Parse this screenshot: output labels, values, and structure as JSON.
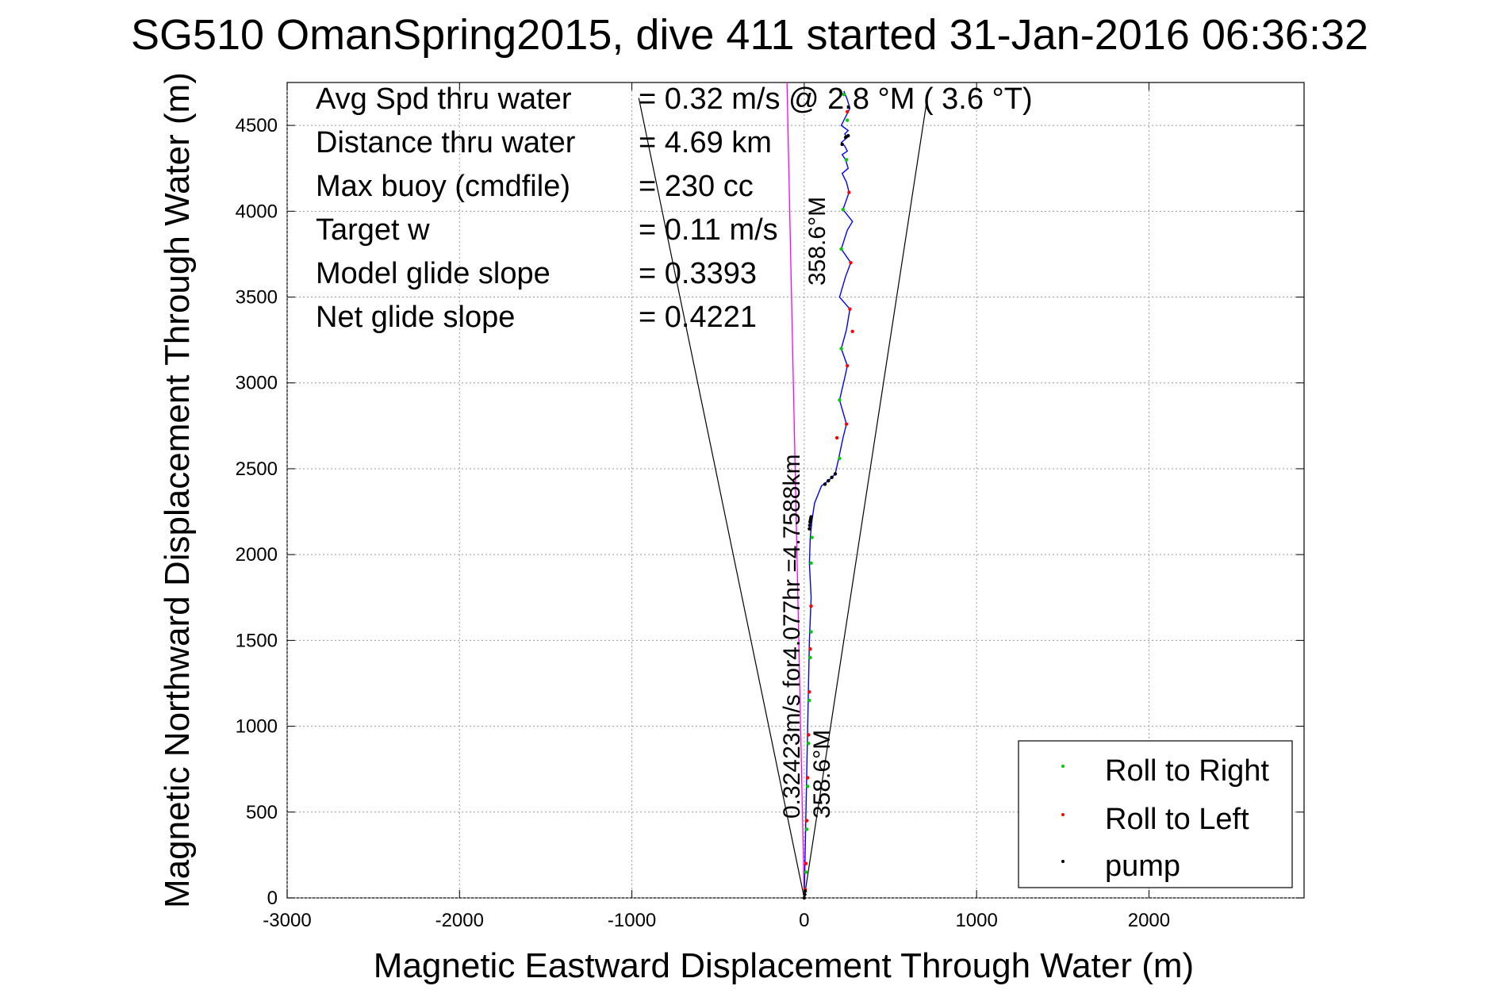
{
  "chart_data": {
    "type": "line",
    "title": "SG510 OmanSpring2015, dive 411 started 31-Jan-2016 06:36:32",
    "xlabel": "Magnetic Eastward Displacement Through Water (m)",
    "ylabel": "Magnetic Northward Displacement Through Water (m)",
    "xlim": [
      -3000,
      2900
    ],
    "ylim": [
      0,
      4750
    ],
    "xticks": [
      -3000,
      -2000,
      -1000,
      0,
      1000,
      2000
    ],
    "xtick_labels": [
      "-3000",
      "-2000",
      "-1000",
      "0",
      "1000",
      "2000"
    ],
    "yticks": [
      0,
      500,
      1000,
      1500,
      2000,
      2500,
      3000,
      3500,
      4000,
      4500
    ],
    "ytick_labels": [
      "0",
      "500",
      "1000",
      "1500",
      "2000",
      "2500",
      "3000",
      "3500",
      "4000",
      "4500"
    ],
    "grid": true,
    "legend_position": "bottom-right",
    "colors": {
      "track": "#0000ff",
      "magenta_line": "#ff00ff",
      "roll_right": "#00cc00",
      "roll_left": "#ff0000",
      "pump": "#000000",
      "cone_lines": "#000000"
    },
    "info_lines": [
      {
        "label": "Avg Spd thru water",
        "value": "=  0.32 m/s @   2.8 °M (  3.6 °T)"
      },
      {
        "label": "Distance thru water",
        "value": "=  4.69 km"
      },
      {
        "label": "Max buoy (cmdfile)",
        "value": "= 230 cc"
      },
      {
        "label": "Target w",
        "value": "= 0.11 m/s"
      },
      {
        "label": "Model glide slope",
        "value": "= 0.3393"
      },
      {
        "label": "Net glide slope",
        "value": "= 0.4221"
      }
    ],
    "annotations": {
      "speed_text": "0.32423m/s for4.077hr =4.7588km",
      "heading_text": "358.6°M",
      "heading_text_top": "358.6°M"
    },
    "cone_lines": [
      {
        "x": [
          0,
          -960
        ],
        "y": [
          0,
          4660
        ]
      },
      {
        "x": [
          0,
          720
        ],
        "y": [
          0,
          4700
        ]
      }
    ],
    "magenta_line": {
      "x": [
        0,
        -100
      ],
      "y": [
        0,
        4750
      ]
    },
    "series": [
      {
        "name": "track",
        "x": [
          0,
          5,
          10,
          15,
          20,
          25,
          30,
          40,
          30,
          35,
          45,
          60,
          100,
          140,
          180,
          200,
          225,
          245,
          205,
          235,
          250,
          215,
          245,
          265,
          205,
          240,
          270,
          215,
          250,
          280,
          225,
          260,
          245,
          220,
          255,
          240,
          220,
          250,
          235,
          215,
          250,
          235,
          255,
          215,
          265,
          250,
          230
        ],
        "y": [
          0,
          250,
          500,
          750,
          1000,
          1250,
          1500,
          1750,
          1950,
          2100,
          2200,
          2300,
          2400,
          2430,
          2470,
          2560,
          2680,
          2760,
          2900,
          3030,
          3100,
          3200,
          3310,
          3430,
          3500,
          3620,
          3700,
          3780,
          3890,
          3940,
          4010,
          4110,
          4170,
          4220,
          4250,
          4300,
          4330,
          4350,
          4380,
          4400,
          4430,
          4450,
          4470,
          4500,
          4600,
          4650,
          4700
        ]
      },
      {
        "name": "Roll to Right",
        "x": [
          10,
          15,
          20,
          25,
          30,
          35,
          40,
          40,
          45,
          205,
          205,
          215,
          215,
          225,
          245,
          250,
          230
        ],
        "y": [
          150,
          400,
          650,
          900,
          1150,
          1400,
          1550,
          1950,
          2100,
          2560,
          2900,
          3200,
          3780,
          4010,
          4300,
          4530,
          4680
        ]
      },
      {
        "name": "Roll to Left",
        "x": [
          5,
          10,
          15,
          20,
          25,
          30,
          35,
          40,
          190,
          245,
          250,
          265,
          270,
          280,
          260,
          250
        ],
        "y": [
          50,
          200,
          450,
          700,
          950,
          1200,
          1450,
          1700,
          2680,
          2760,
          3100,
          3430,
          3700,
          3300,
          4110,
          4580
        ]
      },
      {
        "name": "pump",
        "x": [
          0,
          3,
          6,
          30,
          32,
          34,
          36,
          38,
          40,
          120,
          140,
          160,
          180,
          220,
          240,
          255
        ],
        "y": [
          0,
          20,
          40,
          2150,
          2170,
          2190,
          2200,
          2210,
          2220,
          2410,
          2430,
          2450,
          2470,
          4390,
          4430,
          4440
        ]
      }
    ],
    "legend": [
      {
        "label": "Roll to Right",
        "color": "#00cc00"
      },
      {
        "label": "Roll to Left",
        "color": "#ff0000"
      },
      {
        "label": "pump",
        "color": "#000000"
      }
    ]
  }
}
